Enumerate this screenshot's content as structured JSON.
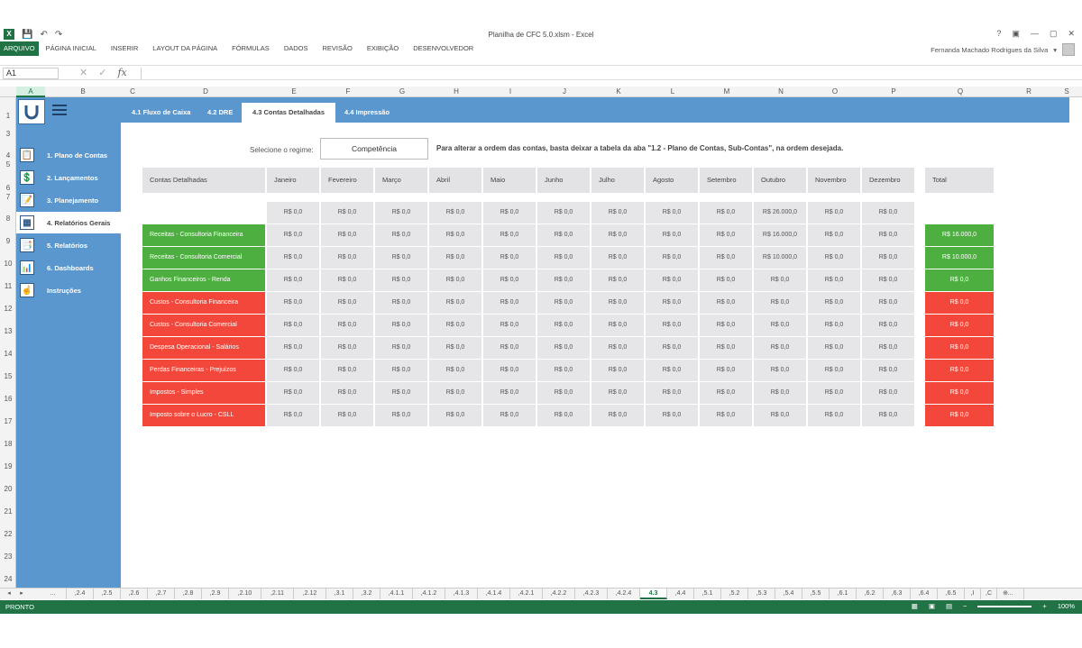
{
  "window": {
    "title": "Planilha de CFC 5.0.xlsm - Excel"
  },
  "window_controls": [
    "?",
    "▣",
    "—",
    "▢",
    "✕"
  ],
  "ribbon": {
    "tabs": [
      "ARQUIVO",
      "PÁGINA INICIAL",
      "INSERIR",
      "LAYOUT DA PÁGINA",
      "FÓRMULAS",
      "DADOS",
      "REVISÃO",
      "EXIBIÇÃO",
      "DESENVOLVEDOR"
    ],
    "user": "Fernanda Machado Rodrigues da Silva"
  },
  "formula_bar": {
    "name_box": "A1",
    "fx": "fx"
  },
  "columns": [
    "A",
    "B",
    "C",
    "D",
    "E",
    "F",
    "G",
    "H",
    "I",
    "J",
    "K",
    "L",
    "M",
    "N",
    "O",
    "P",
    "Q",
    "R",
    "S"
  ],
  "rows": [
    "1",
    "3",
    "4",
    "5",
    "6",
    "7",
    "8",
    "9",
    "10",
    "11",
    "12",
    "13",
    "14",
    "15",
    "16",
    "17",
    "18",
    "19",
    "20",
    "21",
    "22",
    "23",
    "24"
  ],
  "sidebar": {
    "items": [
      {
        "label": "1. Plano de Contas",
        "icon": "📋"
      },
      {
        "label": "2. Lançamentos",
        "icon": "💲"
      },
      {
        "label": "3. Planejamento",
        "icon": "📝"
      },
      {
        "label": "4. Relatórios Gerais",
        "icon": "▦"
      },
      {
        "label": "5. Relatórios",
        "icon": "📑"
      },
      {
        "label": "6. Dashboards",
        "icon": "📊"
      },
      {
        "label": "Instruções",
        "icon": "☝"
      }
    ]
  },
  "top_tabs": [
    "4.1 Fluxo de Caixa",
    "4.2 DRE",
    "4.3 Contas Detalhadas",
    "4.4 Impressão"
  ],
  "regime": {
    "label": "Selecione o regime:",
    "value": "Competência",
    "note": "Para alterar a ordem das contas, basta deixar a tabela da aba \"1.2 - Plano de Contas, Sub-Contas\", na ordem desejada."
  },
  "table": {
    "first_header": "Contas Detalhadas",
    "months": [
      "Janeiro",
      "Fevereiro",
      "Março",
      "Abril",
      "Maio",
      "Junho",
      "Julho",
      "Agosto",
      "Setembro",
      "Outubro",
      "Novembro",
      "Dezembro"
    ],
    "total_header": "Total",
    "summary": [
      "R$ 0,0",
      "R$ 0,0",
      "R$ 0,0",
      "R$ 0,0",
      "R$ 0,0",
      "R$ 0,0",
      "R$ 0,0",
      "R$ 0,0",
      "R$ 0,0",
      "R$ 26.000,0",
      "R$ 0,0",
      "R$ 0,0"
    ],
    "rows": [
      {
        "name": "Receitas - Consultoria Financeira",
        "type": "green",
        "values": [
          "R$ 0,0",
          "R$ 0,0",
          "R$ 0,0",
          "R$ 0,0",
          "R$ 0,0",
          "R$ 0,0",
          "R$ 0,0",
          "R$ 0,0",
          "R$ 0,0",
          "R$ 16.000,0",
          "R$ 0,0",
          "R$ 0,0"
        ],
        "total": "R$ 16.000,0"
      },
      {
        "name": "Receitas - Consultoria Comercial",
        "type": "green",
        "values": [
          "R$ 0,0",
          "R$ 0,0",
          "R$ 0,0",
          "R$ 0,0",
          "R$ 0,0",
          "R$ 0,0",
          "R$ 0,0",
          "R$ 0,0",
          "R$ 0,0",
          "R$ 10.000,0",
          "R$ 0,0",
          "R$ 0,0"
        ],
        "total": "R$ 10.000,0"
      },
      {
        "name": "Ganhos Financeiros - Renda",
        "type": "green",
        "values": [
          "R$ 0,0",
          "R$ 0,0",
          "R$ 0,0",
          "R$ 0,0",
          "R$ 0,0",
          "R$ 0,0",
          "R$ 0,0",
          "R$ 0,0",
          "R$ 0,0",
          "R$ 0,0",
          "R$ 0,0",
          "R$ 0,0"
        ],
        "total": "R$ 0,0"
      },
      {
        "name": "Custos - Consultoria Financeira",
        "type": "red",
        "values": [
          "R$ 0,0",
          "R$ 0,0",
          "R$ 0,0",
          "R$ 0,0",
          "R$ 0,0",
          "R$ 0,0",
          "R$ 0,0",
          "R$ 0,0",
          "R$ 0,0",
          "R$ 0,0",
          "R$ 0,0",
          "R$ 0,0"
        ],
        "total": "R$ 0,0"
      },
      {
        "name": "Custos - Consultoria Comercial",
        "type": "red",
        "values": [
          "R$ 0,0",
          "R$ 0,0",
          "R$ 0,0",
          "R$ 0,0",
          "R$ 0,0",
          "R$ 0,0",
          "R$ 0,0",
          "R$ 0,0",
          "R$ 0,0",
          "R$ 0,0",
          "R$ 0,0",
          "R$ 0,0"
        ],
        "total": "R$ 0,0"
      },
      {
        "name": "Despesa Operacional - Salários",
        "type": "red",
        "values": [
          "R$ 0,0",
          "R$ 0,0",
          "R$ 0,0",
          "R$ 0,0",
          "R$ 0,0",
          "R$ 0,0",
          "R$ 0,0",
          "R$ 0,0",
          "R$ 0,0",
          "R$ 0,0",
          "R$ 0,0",
          "R$ 0,0"
        ],
        "total": "R$ 0,0"
      },
      {
        "name": "Perdas Financeiras - Prejuízos",
        "type": "red",
        "values": [
          "R$ 0,0",
          "R$ 0,0",
          "R$ 0,0",
          "R$ 0,0",
          "R$ 0,0",
          "R$ 0,0",
          "R$ 0,0",
          "R$ 0,0",
          "R$ 0,0",
          "R$ 0,0",
          "R$ 0,0",
          "R$ 0,0"
        ],
        "total": "R$ 0,0"
      },
      {
        "name": "Impostos - Simples",
        "type": "red",
        "values": [
          "R$ 0,0",
          "R$ 0,0",
          "R$ 0,0",
          "R$ 0,0",
          "R$ 0,0",
          "R$ 0,0",
          "R$ 0,0",
          "R$ 0,0",
          "R$ 0,0",
          "R$ 0,0",
          "R$ 0,0",
          "R$ 0,0"
        ],
        "total": "R$ 0,0"
      },
      {
        "name": "Imposto sobre o Lucro - CSLL",
        "type": "red",
        "values": [
          "R$ 0,0",
          "R$ 0,0",
          "R$ 0,0",
          "R$ 0,0",
          "R$ 0,0",
          "R$ 0,0",
          "R$ 0,0",
          "R$ 0,0",
          "R$ 0,0",
          "R$ 0,0",
          "R$ 0,0",
          "R$ 0,0"
        ],
        "total": "R$ 0,0"
      }
    ]
  },
  "sheet_tabs": [
    "...",
    ",2.4",
    ",2.5",
    ",2.6",
    ",2.7",
    ",2.8",
    ",2.9",
    ",2.10",
    ",2.11",
    ",2.12",
    ",3.1",
    ",3.2",
    ",4.1.1",
    ",4.1.2",
    ",4.1.3",
    ",4.1.4",
    ",4.2.1",
    ",4.2.2",
    ",4.2.3",
    ",4.2.4",
    "4.3",
    ",4.4",
    ",5.1",
    ",5.2",
    ",5.3",
    ",5.4",
    ",5.5",
    ",6.1",
    ",6.2",
    ",6.3",
    ",6.4",
    ",6.5",
    ",I",
    ",C",
    "..."
  ],
  "active_sheet": "4.3",
  "status": {
    "ready": "PRONTO",
    "zoom": "100%"
  },
  "colors": {
    "excel_green": "#217346",
    "sidebar_blue": "#5b97cf",
    "green": "#4caf3f",
    "red": "#f2473a"
  }
}
